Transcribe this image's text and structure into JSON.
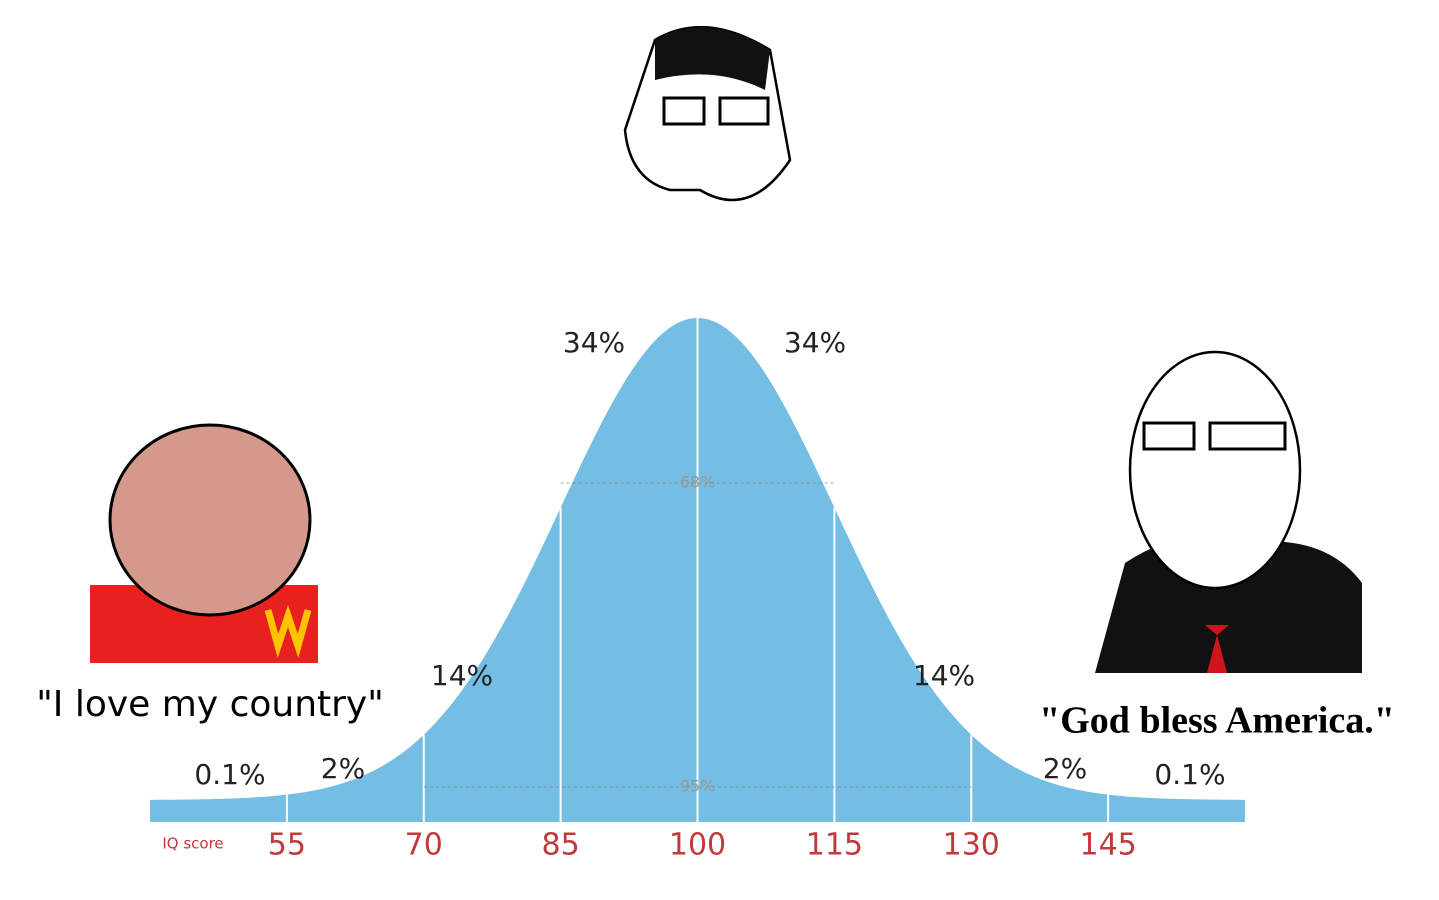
{
  "chart_data": {
    "type": "bell",
    "x_label": "IQ score",
    "xlim": [
      40,
      160
    ],
    "xticks": [
      55,
      70,
      85,
      100,
      115,
      130,
      145
    ],
    "mean": 100,
    "sd": 15,
    "color": "#74bde3",
    "tick_color": "#c0393b",
    "values": [
      0.1,
      2,
      14,
      34,
      34,
      14,
      2,
      0.1
    ],
    "value_labels": [
      "0.1%",
      "2%",
      "14%",
      "34%",
      "34%",
      "14%",
      "2%",
      "0.1%"
    ],
    "bands": [
      {
        "label": "68%",
        "range": [
          85,
          115
        ]
      },
      {
        "label": "95%",
        "range": [
          70,
          130
        ]
      }
    ],
    "captions": [
      "\"I love my country\"",
      "\"God bless America.\""
    ]
  }
}
